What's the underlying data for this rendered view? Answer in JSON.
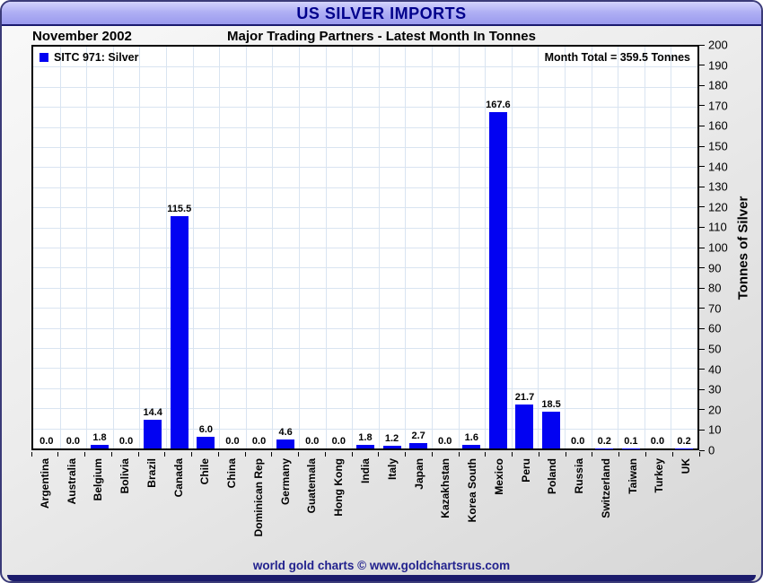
{
  "window": {
    "title": "US SILVER IMPORTS",
    "footer": "world gold charts © www.goldchartsrus.com"
  },
  "header": {
    "period": "November 2002",
    "subtitle": "Major Trading Partners - Latest Month In Tonnes"
  },
  "legend": {
    "label": "SITC 971: Silver"
  },
  "annotations": {
    "month_total": "Month Total = 359.5 Tonnes"
  },
  "colors": {
    "bar": "#0202f2",
    "grid": "#d9e4f1",
    "frame_navy": "#1a1a6e",
    "title_text": "#00008b",
    "footer_text": "#22228e"
  },
  "chart_data": {
    "type": "bar",
    "title": "US SILVER IMPORTS",
    "subtitle": "Major Trading Partners - Latest Month In Tonnes",
    "period": "November 2002",
    "series_name": "SITC 971: Silver",
    "ylabel": "Tonnes of Silver",
    "ylim": [
      0,
      200
    ],
    "ytick_interval": 10,
    "grid": true,
    "legend_position": "top-left",
    "month_total_tonnes": 359.5,
    "value_format_decimals": 1,
    "categories": [
      "Argentina",
      "Australia",
      "Belgium",
      "Bolivia",
      "Brazil",
      "Canada",
      "Chile",
      "China",
      "Dominican Rep",
      "Germany",
      "Guatemala",
      "Hong Kong",
      "India",
      "Italy",
      "Japan",
      "Kazakhstan",
      "Korea South",
      "Mexico",
      "Peru",
      "Poland",
      "Russia",
      "Switzerland",
      "Taiwan",
      "Turkey",
      "UK"
    ],
    "values": [
      0.0,
      0.0,
      1.8,
      0.0,
      14.4,
      115.5,
      6.0,
      0.0,
      0.0,
      4.6,
      0.0,
      0.0,
      1.8,
      1.2,
      2.7,
      0.0,
      1.6,
      167.6,
      21.7,
      18.5,
      0.0,
      0.2,
      0.1,
      0.0,
      0.2
    ]
  }
}
